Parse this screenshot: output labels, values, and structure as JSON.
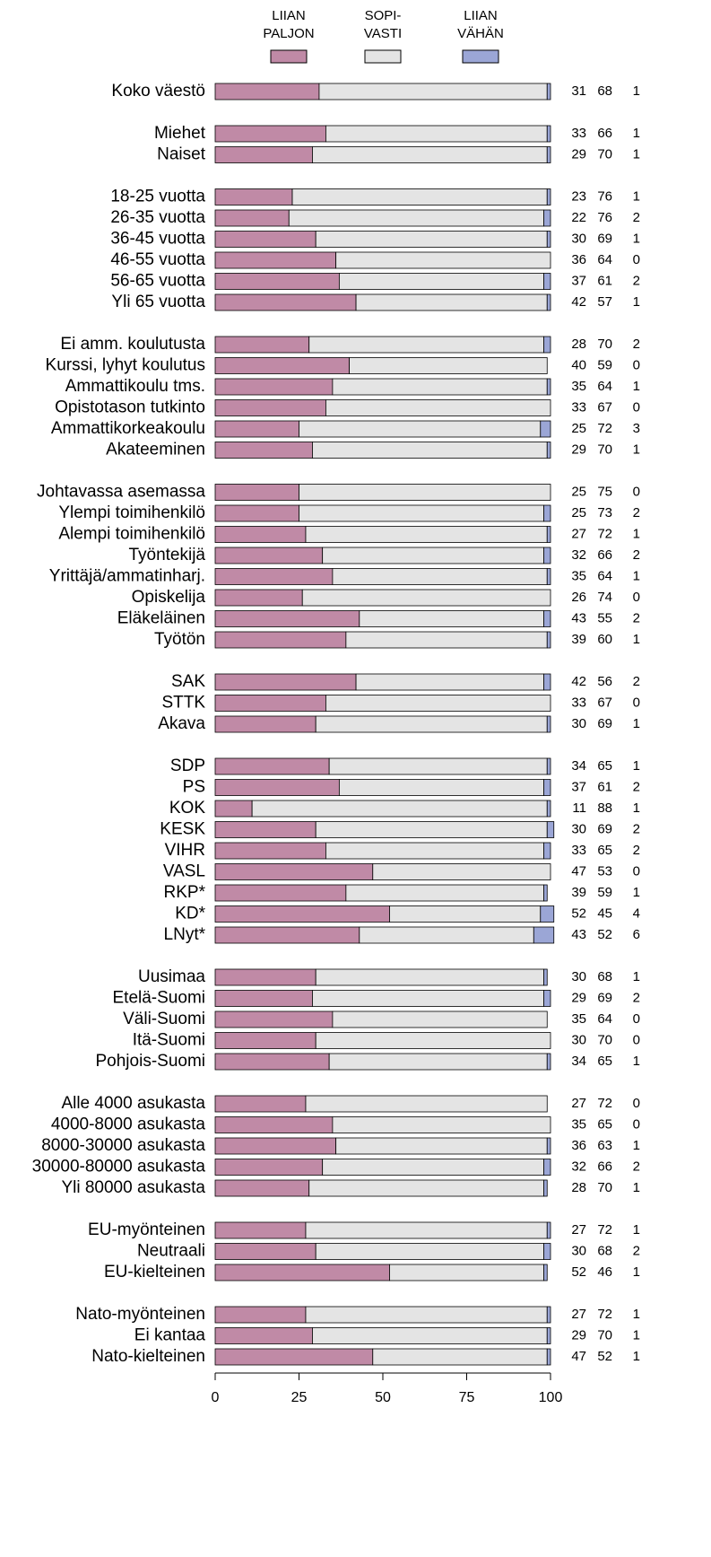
{
  "chart_data": {
    "type": "stacked_barh",
    "categories": [
      "Koko väestö",
      null,
      "Miehet",
      "Naiset",
      null,
      "18-25 vuotta",
      "26-35 vuotta",
      "36-45 vuotta",
      "46-55 vuotta",
      "56-65 vuotta",
      "Yli 65 vuotta",
      null,
      "Ei amm. koulutusta",
      "Kurssi, lyhyt koulutus",
      "Ammattikoulu tms.",
      "Opistotason tutkinto",
      "Ammattikorkeakoulu",
      "Akateeminen",
      null,
      "Johtavassa asemassa",
      "Ylempi toimihenkilö",
      "Alempi toimihenkilö",
      "Työntekijä",
      "Yrittäjä/ammatinharj.",
      "Opiskelija",
      "Eläkeläinen",
      "Työtön",
      null,
      "SAK",
      "STTK",
      "Akava",
      null,
      "SDP",
      "PS",
      "KOK",
      "KESK",
      "VIHR",
      "VASL",
      "RKP*",
      "KD*",
      "LNyt*",
      null,
      "Uusimaa",
      "Etelä-Suomi",
      "Väli-Suomi",
      "Itä-Suomi",
      "Pohjois-Suomi",
      null,
      "Alle 4000 asukasta",
      "4000-8000 asukasta",
      "8000-30000 asukasta",
      "30000-80000 asukasta",
      "Yli 80000 asukasta",
      null,
      "EU-myönteinen",
      "Neutraali",
      "EU-kielteinen",
      null,
      "Nato-myönteinen",
      "Ei kantaa",
      "Nato-kielteinen"
    ],
    "series": [
      {
        "name": "LIIAN\nPALJON",
        "color": "#c08aa6",
        "values": [
          31,
          null,
          33,
          29,
          null,
          23,
          22,
          30,
          36,
          37,
          42,
          null,
          28,
          40,
          35,
          33,
          25,
          29,
          null,
          25,
          25,
          27,
          32,
          35,
          26,
          43,
          39,
          null,
          42,
          33,
          30,
          null,
          34,
          37,
          11,
          30,
          33,
          47,
          39,
          52,
          43,
          null,
          30,
          29,
          35,
          30,
          34,
          null,
          27,
          35,
          36,
          32,
          28,
          null,
          27,
          30,
          52,
          null,
          27,
          29,
          47
        ]
      },
      {
        "name": "SOPI-\nVASTI",
        "color": "#e4e4e4",
        "values": [
          68,
          null,
          66,
          70,
          null,
          76,
          76,
          69,
          64,
          61,
          57,
          null,
          70,
          59,
          64,
          67,
          72,
          70,
          null,
          75,
          73,
          72,
          66,
          64,
          74,
          55,
          60,
          null,
          56,
          67,
          69,
          null,
          65,
          61,
          88,
          69,
          65,
          53,
          59,
          45,
          52,
          null,
          68,
          69,
          64,
          70,
          65,
          null,
          72,
          65,
          63,
          66,
          70,
          null,
          72,
          68,
          46,
          null,
          72,
          70,
          52
        ]
      },
      {
        "name": "LIIAN\nVÄHÄN",
        "color": "#9ba6d6",
        "values": [
          1,
          null,
          1,
          1,
          null,
          1,
          2,
          1,
          0,
          2,
          1,
          null,
          2,
          0,
          1,
          0,
          3,
          1,
          null,
          0,
          2,
          1,
          2,
          1,
          0,
          2,
          1,
          null,
          2,
          0,
          1,
          null,
          1,
          2,
          1,
          2,
          2,
          0,
          1,
          4,
          6,
          null,
          1,
          2,
          0,
          0,
          1,
          null,
          0,
          0,
          1,
          2,
          1,
          null,
          1,
          2,
          1,
          null,
          1,
          1,
          1
        ]
      }
    ],
    "xlim": [
      0,
      100
    ],
    "xticks": [
      0,
      25,
      50,
      75,
      100
    ],
    "legend": "top"
  }
}
